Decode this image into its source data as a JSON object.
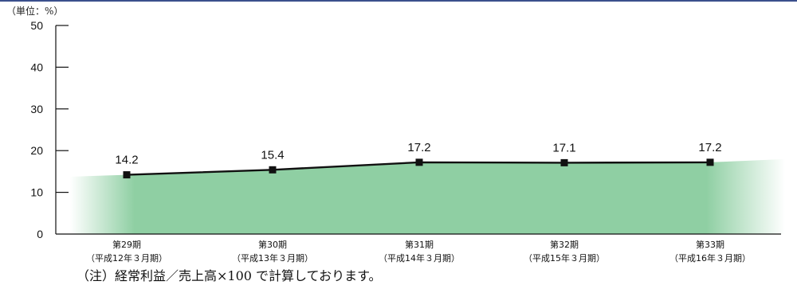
{
  "chart_data": {
    "type": "line",
    "unit_label": "（単位：%）",
    "categories": [
      {
        "period": "第29期",
        "fiscal": "（平成12年３月期）"
      },
      {
        "period": "第30期",
        "fiscal": "（平成13年３月期）"
      },
      {
        "period": "第31期",
        "fiscal": "（平成14年３月期）"
      },
      {
        "period": "第32期",
        "fiscal": "（平成15年３月期）"
      },
      {
        "period": "第33期",
        "fiscal": "（平成16年３月期）"
      }
    ],
    "values": [
      14.2,
      15.4,
      17.2,
      17.1,
      17.2
    ],
    "value_labels": [
      "14.2",
      "15.4",
      "17.2",
      "17.1",
      "17.2"
    ],
    "ylim": [
      0,
      50
    ],
    "yticks": [
      0,
      10,
      20,
      30,
      40,
      50
    ],
    "grid": false,
    "colors": {
      "line": "#111111",
      "marker": "#111111",
      "fill": "#8fcfa3",
      "axis": "#111111"
    }
  },
  "note": "（注）経常利益／売上高×100 で計算しております。"
}
